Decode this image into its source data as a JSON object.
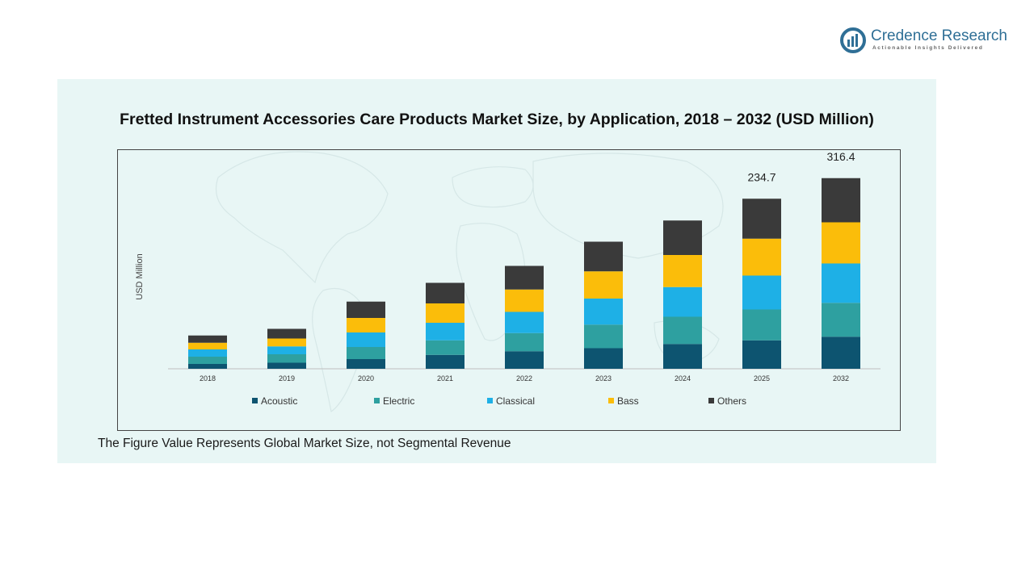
{
  "brand": {
    "name": "Credence Research",
    "tagline": "Actionable Insights Delivered"
  },
  "footnote": "The Figure Value Represents Global Market Size, not Segmental Revenue",
  "colors": {
    "panel": "#e8f6f5",
    "acoustic": "#0d5470",
    "electric": "#2ea0a0",
    "classical": "#1eb0e6",
    "bass": "#fbbd0a",
    "others": "#3a3a3a"
  },
  "chart_data": {
    "type": "bar",
    "stacked": true,
    "title": "Fretted Instrument Accessories Care Products Market Size, by Application, 2018 – 2032 (USD Million)",
    "ylabel": "USD Million",
    "xlabel": "",
    "categories": [
      "2018",
      "2019",
      "2020",
      "2021",
      "2022",
      "2023",
      "2024",
      "2025",
      "2032"
    ],
    "series": [
      {
        "name": "Acoustic",
        "color": "#0d5470",
        "values": [
          8,
          10,
          16,
          23,
          29,
          34,
          41,
          47,
          53
        ]
      },
      {
        "name": "Electric",
        "color": "#2ea0a0",
        "values": [
          12,
          14,
          20,
          24,
          30,
          39,
          45,
          51,
          56
        ]
      },
      {
        "name": "Classical",
        "color": "#1eb0e6",
        "values": [
          12,
          13,
          24,
          29,
          35,
          43,
          49,
          56,
          65
        ]
      },
      {
        "name": "Bass",
        "color": "#fbbd0a",
        "values": [
          11,
          13,
          24,
          32,
          37,
          45,
          53,
          61,
          68
        ]
      },
      {
        "name": "Others",
        "color": "#3a3a3a",
        "values": [
          12,
          16,
          27,
          34,
          39,
          49,
          57,
          66,
          73
        ]
      }
    ],
    "totals_labels": [
      {
        "category": "2025",
        "text": "234.7"
      },
      {
        "category": "2032",
        "text": "316.4"
      }
    ],
    "ylim": [
      0,
      360
    ],
    "grid": false,
    "legend_position": "bottom"
  }
}
